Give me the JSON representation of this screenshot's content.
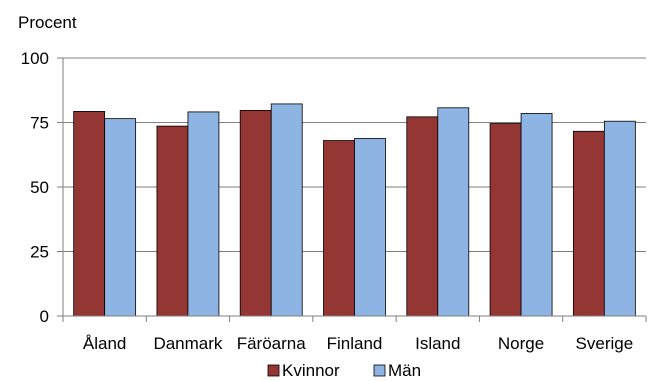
{
  "chart_data": {
    "type": "bar",
    "title": "",
    "ylabel": "Procent",
    "xlabel": "",
    "ylim": [
      0,
      100
    ],
    "yticks": [
      0,
      25,
      50,
      75,
      100
    ],
    "grid": true,
    "legend_position": "bottom",
    "categories": [
      "Åland",
      "Danmark",
      "Färöarna",
      "Finland",
      "Island",
      "Norge",
      "Sverige"
    ],
    "series": [
      {
        "name": "Kvinnor",
        "color": "#943634",
        "values": [
          79.3,
          73.6,
          79.7,
          68.0,
          77.2,
          74.6,
          71.6
        ]
      },
      {
        "name": "Män",
        "color": "#8DB4E3",
        "values": [
          76.5,
          79.1,
          82.2,
          68.8,
          80.7,
          78.5,
          75.5
        ]
      }
    ]
  }
}
